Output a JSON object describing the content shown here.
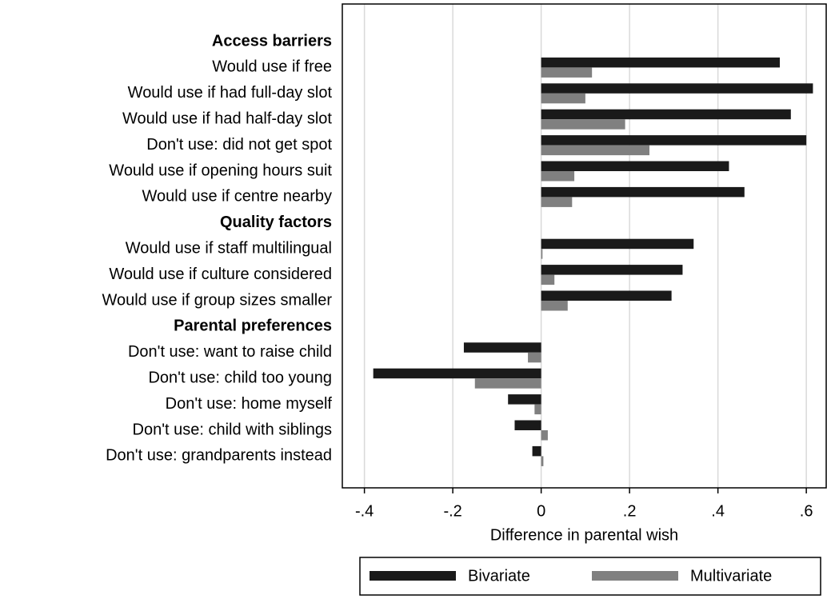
{
  "chart_data": {
    "type": "bar",
    "orientation": "horizontal",
    "categories": [
      "Access barriers",
      "Would use if free",
      "Would use if had full-day slot",
      "Would use if had half-day slot",
      "Don't use: did not get spot",
      "Would use if opening hours suit",
      "Would use if centre nearby",
      "Quality factors",
      "Would use if staff multilingual",
      "Would use if culture considered",
      "Would use if group sizes smaller",
      "Parental preferences",
      "Don't use: want to raise child",
      "Don't use: child too young",
      "Don't use: home myself",
      "Don't use: child with siblings",
      "Don't use: grandparents instead"
    ],
    "series": [
      {
        "name": "Bivariate",
        "color": "#1a1a1a",
        "values": [
          null,
          0.54,
          0.615,
          0.565,
          0.6,
          0.425,
          0.46,
          null,
          0.345,
          0.32,
          0.295,
          null,
          -0.175,
          -0.38,
          -0.075,
          -0.06,
          -0.02
        ]
      },
      {
        "name": "Multivariate",
        "color": "#808080",
        "values": [
          null,
          0.115,
          0.1,
          0.19,
          0.245,
          0.075,
          0.07,
          null,
          0.003,
          0.03,
          0.06,
          null,
          -0.03,
          -0.15,
          -0.015,
          0.015,
          0.005
        ]
      }
    ],
    "x_label": "Difference in parental wish",
    "xlim": [
      -0.45,
      0.645
    ],
    "xticks": [
      {
        "value": -0.4,
        "label": "-.4"
      },
      {
        "value": -0.2,
        "label": "-.2"
      },
      0,
      {
        "value": 0.2,
        "label": ".2"
      },
      {
        "value": 0.4,
        "label": ".4"
      },
      {
        "value": 0.6,
        "label": ".6"
      }
    ],
    "grid": true,
    "legend": "bottom"
  }
}
